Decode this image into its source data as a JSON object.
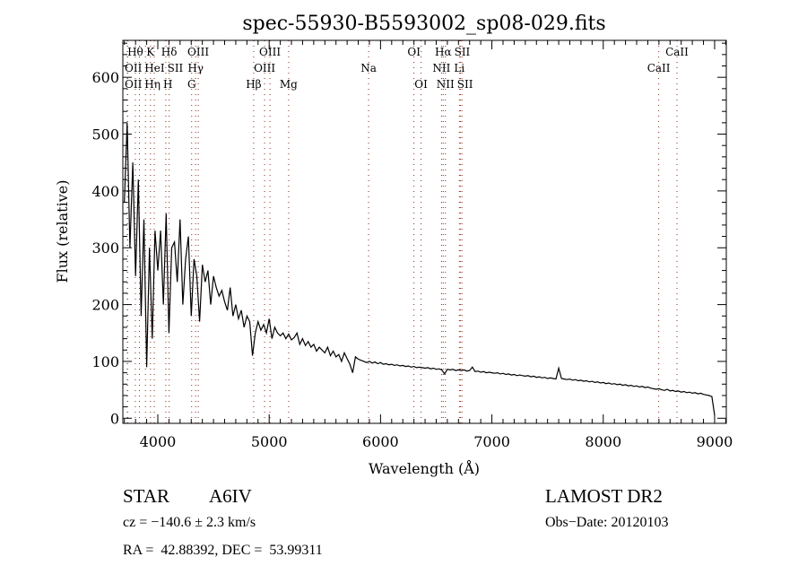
{
  "chart_data": {
    "type": "line",
    "title": "spec-55930-B5593002_sp08-029.fits",
    "xlabel": "Wavelength (Å)",
    "ylabel": "Flux (relative)",
    "xlim": [
      3686,
      9105
    ],
    "ylim": [
      -9,
      665
    ],
    "xticks": [
      4000,
      5000,
      6000,
      7000,
      8000,
      9000
    ],
    "yticks": [
      0,
      100,
      200,
      300,
      400,
      500,
      600
    ],
    "grid": false,
    "series": [
      {
        "name": "flux",
        "x_start": 3700,
        "x_step": 25,
        "values": [
          380,
          520,
          300,
          450,
          250,
          420,
          180,
          350,
          90,
          300,
          140,
          330,
          260,
          330,
          200,
          360,
          150,
          300,
          310,
          240,
          350,
          200,
          280,
          320,
          180,
          280,
          250,
          170,
          270,
          240,
          260,
          200,
          250,
          230,
          215,
          225,
          205,
          190,
          230,
          180,
          200,
          175,
          190,
          160,
          180,
          170,
          110,
          150,
          170,
          155,
          165,
          150,
          175,
          140,
          160,
          150,
          145,
          150,
          140,
          148,
          138,
          142,
          150,
          130,
          140,
          128,
          135,
          125,
          130,
          118,
          125,
          120,
          115,
          125,
          110,
          118,
          108,
          112,
          100,
          115,
          105,
          95,
          80,
          108,
          104,
          102,
          100,
          98,
          100,
          97,
          99,
          96,
          98,
          95,
          96,
          94,
          95,
          93,
          94,
          92,
          93,
          91,
          92,
          90,
          91,
          89,
          90,
          89,
          88,
          89,
          87,
          88,
          86,
          87,
          85,
          78,
          86,
          85,
          86,
          84,
          85,
          84,
          85,
          83,
          84,
          90,
          82,
          83,
          81,
          82,
          80,
          81,
          80,
          79,
          80,
          78,
          79,
          77,
          78,
          76,
          77,
          75,
          76,
          75,
          74,
          75,
          73,
          74,
          72,
          73,
          71,
          72,
          70,
          71,
          70,
          69,
          88,
          70,
          69,
          68,
          69,
          67,
          68,
          66,
          67,
          65,
          66,
          64,
          65,
          63,
          64,
          62,
          63,
          61,
          62,
          60,
          61,
          59,
          60,
          58,
          59,
          57,
          58,
          56,
          57,
          55,
          56,
          54,
          55,
          53,
          52,
          51,
          52,
          50,
          49,
          51,
          48,
          49,
          47,
          48,
          46,
          47,
          45,
          46,
          44,
          45,
          43,
          44,
          42,
          41,
          40,
          38,
          5
        ]
      }
    ],
    "line_markers": [
      {
        "label": "OII",
        "wavelength": 3727,
        "row": 2
      },
      {
        "label": "OII",
        "wavelength": 3729,
        "row": 3
      },
      {
        "label": "Hθ",
        "wavelength": 3798,
        "row": 1
      },
      {
        "label": "Hη",
        "wavelength": 3835,
        "row": 3
      },
      {
        "label": "HeI",
        "wavelength": 3889,
        "row": 2
      },
      {
        "label": "K",
        "wavelength": 3934,
        "row": 1
      },
      {
        "label": "H",
        "wavelength": 3968,
        "row": 3
      },
      {
        "label": "SII",
        "wavelength": 4072,
        "row": 2
      },
      {
        "label": "Hδ",
        "wavelength": 4102,
        "row": 1
      },
      {
        "label": "G",
        "wavelength": 4304,
        "row": 3
      },
      {
        "label": "Hγ",
        "wavelength": 4340,
        "row": 2
      },
      {
        "label": "OIII",
        "wavelength": 4363,
        "row": 1
      },
      {
        "label": "Hβ",
        "wavelength": 4861,
        "row": 3
      },
      {
        "label": "OIII",
        "wavelength": 4959,
        "row": 2
      },
      {
        "label": "OIII",
        "wavelength": 5007,
        "row": 1
      },
      {
        "label": "Mg",
        "wavelength": 5175,
        "row": 3
      },
      {
        "label": "Na",
        "wavelength": 5893,
        "row": 2
      },
      {
        "label": "OI",
        "wavelength": 6300,
        "row": 1
      },
      {
        "label": "OI",
        "wavelength": 6364,
        "row": 3
      },
      {
        "label": "NII",
        "wavelength": 6548,
        "row": 2
      },
      {
        "label": "Hα",
        "wavelength": 6563,
        "row": 1
      },
      {
        "label": "NII",
        "wavelength": 6583,
        "row": 3
      },
      {
        "label": "Li",
        "wavelength": 6708,
        "row": 2
      },
      {
        "label": "SII",
        "wavelength": 6717,
        "row": 1
      },
      {
        "label": "SII",
        "wavelength": 6731,
        "row": 3
      },
      {
        "label": "CaII",
        "wavelength": 8498,
        "row": 2
      },
      {
        "label": "CaII",
        "wavelength": 8662,
        "row": 1
      }
    ],
    "colors": {
      "spectrum": "#000000",
      "markers": "#8b2a1a",
      "axes": "#000000"
    }
  },
  "info": {
    "object_class": "STAR",
    "subclass": "A6IV",
    "redshift": "cz = −140.6 ± 2.3 km/s",
    "coords": "RA =  42.88392, DEC =  53.99311",
    "survey": "LAMOST DR2",
    "obs_date": "Obs−Date: 20120103"
  }
}
